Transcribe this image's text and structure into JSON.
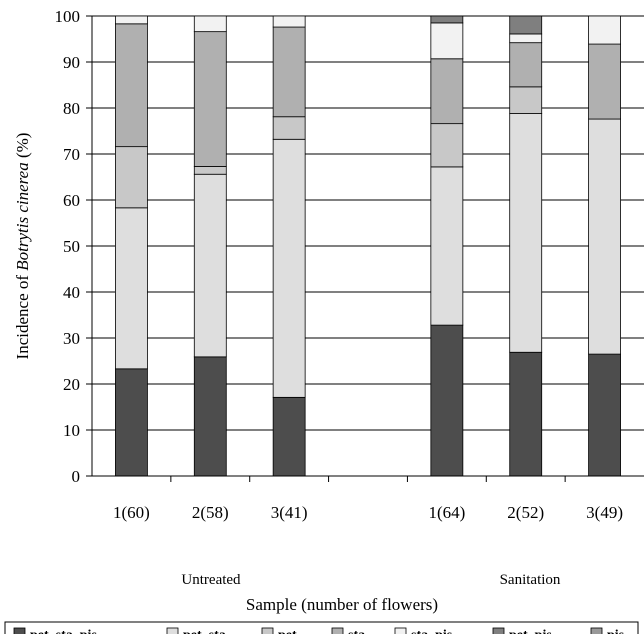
{
  "chart_data": {
    "type": "bar",
    "stacked": true,
    "categories": [
      "1(60)",
      "2(58)",
      "3(41)",
      "",
      "1(64)",
      "2(52)",
      "3(49)"
    ],
    "groups": [
      {
        "label": "Untreated",
        "categories": [
          "1(60)",
          "2(58)",
          "3(41)"
        ]
      },
      {
        "label": "Sanitation",
        "categories": [
          "1(64)",
          "2(52)",
          "3(49)"
        ]
      }
    ],
    "series": [
      {
        "name": "pet_sta_pis",
        "color": "#4d4d4d",
        "values": [
          23.3,
          25.9,
          17.1,
          null,
          32.8,
          26.9,
          26.5
        ]
      },
      {
        "name": "pet_sta",
        "color": "#dedede",
        "values": [
          35.0,
          39.7,
          56.1,
          null,
          34.4,
          51.9,
          51.1
        ]
      },
      {
        "name": "pet",
        "color": "#c8c8c8",
        "values": [
          13.3,
          1.7,
          4.9,
          null,
          9.4,
          5.8,
          0
        ]
      },
      {
        "name": "sta",
        "color": "#b0b0b0",
        "values": [
          26.7,
          29.3,
          19.5,
          null,
          14.1,
          9.6,
          16.3
        ]
      },
      {
        "name": "sta_pis",
        "color": "#f2f2f2",
        "values": [
          1.7,
          3.4,
          2.4,
          null,
          7.8,
          1.9,
          6.1
        ]
      },
      {
        "name": "pet_pis",
        "color": "#7f7f7f",
        "values": [
          0,
          0,
          0,
          null,
          1.5,
          3.9,
          0
        ]
      },
      {
        "name": "pis",
        "color": "#999999",
        "values": [
          0,
          0,
          0,
          null,
          0,
          0,
          0
        ]
      }
    ],
    "xlabel": "Sample (number of flowers)",
    "ylabel_prefix": "Incidence of ",
    "ylabel_italic": "Botrytis cinerea",
    "ylabel_suffix": " (%)",
    "ylim": [
      0,
      100
    ],
    "yticks": [
      "0",
      "10",
      "20",
      "30",
      "40",
      "50",
      "60",
      "70",
      "80",
      "90",
      "100"
    ],
    "grid": true,
    "legend_position": "bottom"
  }
}
